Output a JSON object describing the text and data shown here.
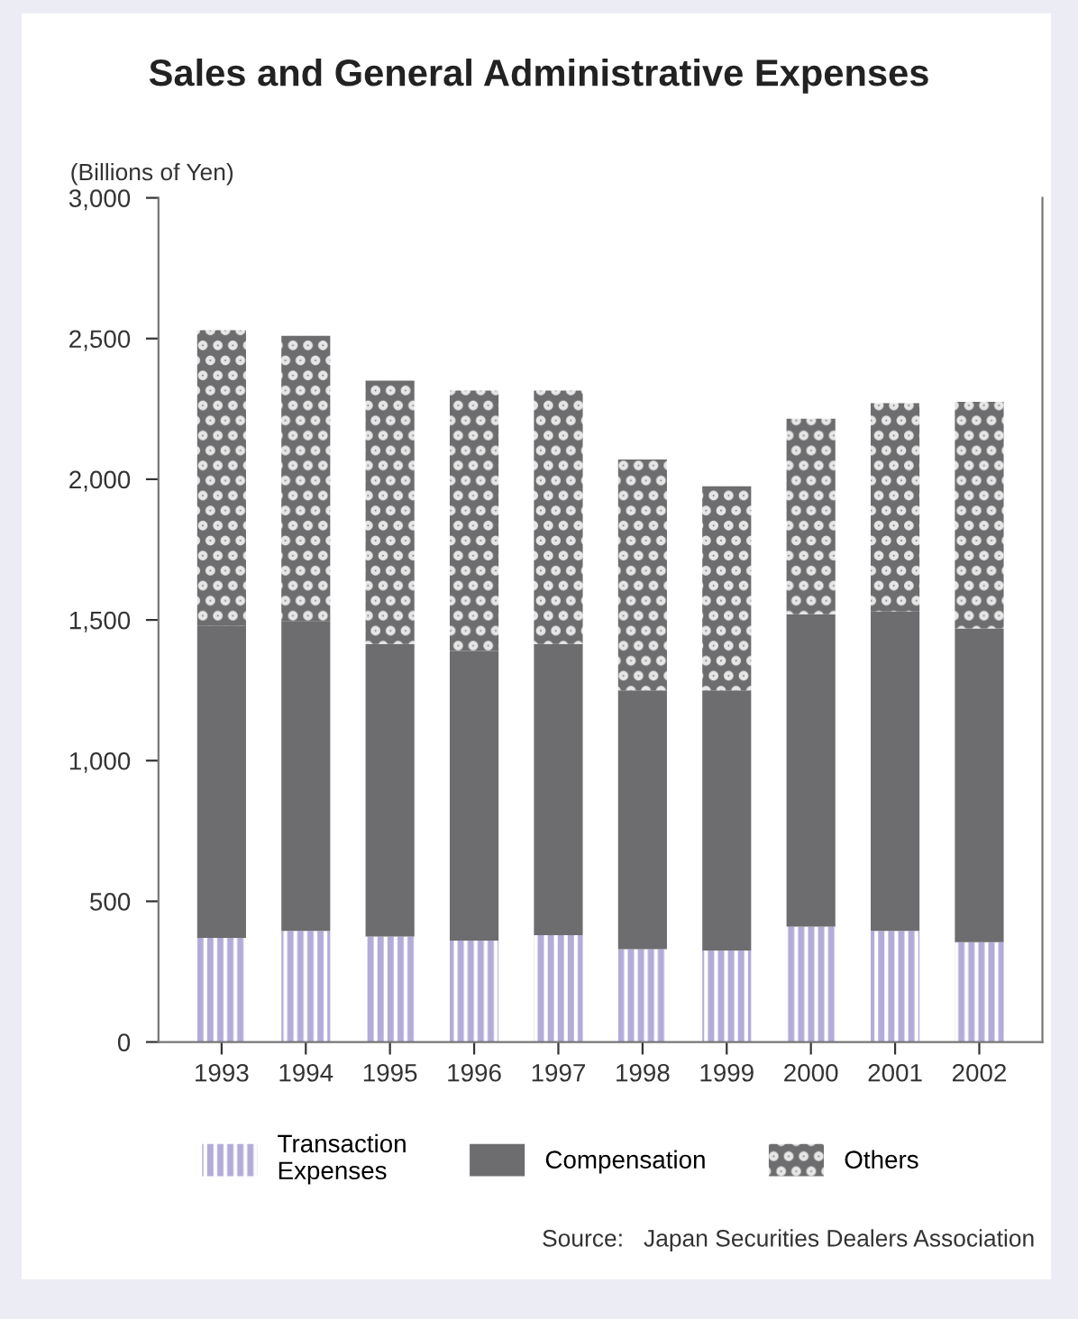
{
  "chart_data": {
    "type": "bar",
    "stacked": true,
    "title": "Sales and General Administrative Expenses",
    "ylabel": "(Billions of Yen)",
    "categories": [
      "1993",
      "1994",
      "1995",
      "1996",
      "1997",
      "1998",
      "1999",
      "2000",
      "2001",
      "2002"
    ],
    "series": [
      {
        "name": "Transaction\nExpenses",
        "color": "#b3acd9",
        "values": [
          370,
          395,
          375,
          360,
          380,
          330,
          325,
          410,
          395,
          355
        ]
      },
      {
        "name": "Compensation",
        "color": "#6d6d6f",
        "values": [
          1110,
          1100,
          1040,
          1030,
          1035,
          920,
          925,
          1110,
          1135,
          1115
        ]
      },
      {
        "name": "Others",
        "color": "#6d6d6f",
        "values": [
          1050,
          1015,
          935,
          925,
          900,
          820,
          725,
          695,
          740,
          805
        ]
      }
    ],
    "ylim": [
      0,
      3000
    ],
    "yticks": [
      0,
      500,
      {
        "value": 1000,
        "label": "1,000"
      },
      {
        "value": 1500,
        "label": "1,500"
      },
      {
        "value": 2000,
        "label": "2,000"
      },
      {
        "value": 2500,
        "label": "2,500"
      },
      {
        "value": 3000,
        "label": "3,000"
      }
    ],
    "grid": false,
    "legend": "bottom",
    "annotations": [
      "Source:   Japan Securities Dealers Association"
    ]
  }
}
